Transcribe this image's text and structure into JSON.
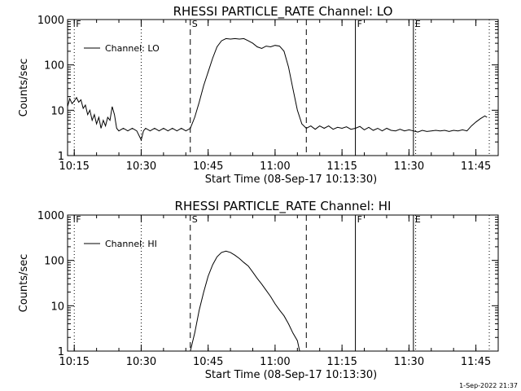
{
  "chart_data": [
    {
      "type": "line",
      "title": "RHESSI PARTICLE_RATE Channel: LO",
      "xlabel": "Start Time (08-Sep-17 10:13:30)",
      "ylabel": "Counts/sec",
      "xlim": [
        "10:13:30",
        "11:50:00"
      ],
      "xticks": [
        "10:15",
        "10:30",
        "10:45",
        "11:00",
        "11:15",
        "11:30",
        "11:45"
      ],
      "ylim": [
        1,
        1000
      ],
      "yscale": "log",
      "yticks": [
        "1",
        "10",
        "100",
        "1000"
      ],
      "legend": "top-left",
      "grid": false,
      "markers": [
        {
          "time": "10:15",
          "label": "F",
          "style": "dotted"
        },
        {
          "time": "10:30",
          "label": "",
          "style": "dotted"
        },
        {
          "time": "10:41",
          "label": "S",
          "style": "dashed"
        },
        {
          "time": "11:07",
          "label": "",
          "style": "dashed"
        },
        {
          "time": "11:18",
          "label": "F",
          "style": "solid"
        },
        {
          "time": "11:31",
          "label": "E",
          "style": "solid"
        },
        {
          "time": "11:31.5",
          "label": "",
          "style": "dotted"
        },
        {
          "time": "11:48",
          "label": "",
          "style": "dotted"
        }
      ],
      "series": [
        {
          "name": "Channel: LO",
          "points": [
            [
              "10:13:30",
              12
            ],
            [
              "10:14:00",
              18
            ],
            [
              "10:14:30",
              14
            ],
            [
              "10:15:00",
              16
            ],
            [
              "10:15:30",
              19
            ],
            [
              "10:16:00",
              15
            ],
            [
              "10:16:30",
              17
            ],
            [
              "10:17:00",
              11
            ],
            [
              "10:17:30",
              13
            ],
            [
              "10:18:00",
              8
            ],
            [
              "10:18:30",
              10
            ],
            [
              "10:19:00",
              6
            ],
            [
              "10:19:30",
              8
            ],
            [
              "10:20:00",
              5
            ],
            [
              "10:20:30",
              7
            ],
            [
              "10:21:00",
              4
            ],
            [
              "10:21:30",
              6
            ],
            [
              "10:22:00",
              4.5
            ],
            [
              "10:22:30",
              7
            ],
            [
              "10:23:00",
              6
            ],
            [
              "10:23:30",
              12
            ],
            [
              "10:24:00",
              8
            ],
            [
              "10:24:30",
              4
            ],
            [
              "10:25:00",
              3.5
            ],
            [
              "10:26:00",
              4
            ],
            [
              "10:27:00",
              3.5
            ],
            [
              "10:28:00",
              4
            ],
            [
              "10:29:00",
              3.5
            ],
            [
              "10:30:00",
              2.2
            ],
            [
              "10:30:30",
              3.5
            ],
            [
              "10:31:00",
              4
            ],
            [
              "10:32:00",
              3.5
            ],
            [
              "10:33:00",
              4
            ],
            [
              "10:34:00",
              3.5
            ],
            [
              "10:35:00",
              4
            ],
            [
              "10:36:00",
              3.5
            ],
            [
              "10:37:00",
              4
            ],
            [
              "10:38:00",
              3.5
            ],
            [
              "10:39:00",
              4
            ],
            [
              "10:40:00",
              3.5
            ],
            [
              "10:41:00",
              4
            ],
            [
              "10:42:00",
              7
            ],
            [
              "10:43:00",
              15
            ],
            [
              "10:44:00",
              35
            ],
            [
              "10:45:00",
              70
            ],
            [
              "10:46:00",
              140
            ],
            [
              "10:47:00",
              250
            ],
            [
              "10:48:00",
              340
            ],
            [
              "10:49:00",
              380
            ],
            [
              "10:50:00",
              370
            ],
            [
              "10:51:00",
              380
            ],
            [
              "10:52:00",
              370
            ],
            [
              "10:53:00",
              380
            ],
            [
              "10:54:00",
              340
            ],
            [
              "10:55:00",
              300
            ],
            [
              "10:56:00",
              250
            ],
            [
              "10:57:00",
              230
            ],
            [
              "10:58:00",
              260
            ],
            [
              "10:59:00",
              250
            ],
            [
              "11:00:00",
              270
            ],
            [
              "11:01:00",
              260
            ],
            [
              "11:02:00",
              200
            ],
            [
              "11:03:00",
              90
            ],
            [
              "11:04:00",
              30
            ],
            [
              "11:05:00",
              10
            ],
            [
              "11:06:00",
              5
            ],
            [
              "11:07:00",
              4
            ],
            [
              "11:08:00",
              4.5
            ],
            [
              "11:09:00",
              3.8
            ],
            [
              "11:10:00",
              4.5
            ],
            [
              "11:11:00",
              4
            ],
            [
              "11:12:00",
              4.5
            ],
            [
              "11:13:00",
              3.8
            ],
            [
              "11:14:00",
              4.2
            ],
            [
              "11:15:00",
              4
            ],
            [
              "11:16:00",
              4.3
            ],
            [
              "11:17:00",
              3.8
            ],
            [
              "11:18:00",
              4
            ],
            [
              "11:19:00",
              4.4
            ],
            [
              "11:20:00",
              3.7
            ],
            [
              "11:21:00",
              4.2
            ],
            [
              "11:22:00",
              3.6
            ],
            [
              "11:23:00",
              4
            ],
            [
              "11:24:00",
              3.5
            ],
            [
              "11:25:00",
              4
            ],
            [
              "11:26:00",
              3.6
            ],
            [
              "11:27:00",
              3.5
            ],
            [
              "11:28:00",
              3.8
            ],
            [
              "11:29:00",
              3.5
            ],
            [
              "11:30:00",
              3.7
            ],
            [
              "11:31:00",
              3.5
            ],
            [
              "11:32:00",
              3.3
            ],
            [
              "11:33:00",
              3.6
            ],
            [
              "11:34:00",
              3.4
            ],
            [
              "11:35:00",
              3.5
            ],
            [
              "11:36:00",
              3.6
            ],
            [
              "11:37:00",
              3.5
            ],
            [
              "11:38:00",
              3.6
            ],
            [
              "11:39:00",
              3.4
            ],
            [
              "11:40:00",
              3.6
            ],
            [
              "11:41:00",
              3.5
            ],
            [
              "11:42:00",
              3.7
            ],
            [
              "11:43:00",
              3.5
            ],
            [
              "11:44:00",
              4.5
            ],
            [
              "11:45:00",
              5.5
            ],
            [
              "11:46:00",
              6.5
            ],
            [
              "11:47:00",
              7.5
            ],
            [
              "11:47:30",
              7
            ]
          ]
        }
      ]
    },
    {
      "type": "line",
      "title": "RHESSI PARTICLE_RATE Channel: HI",
      "xlabel": "Start Time (08-Sep-17 10:13:30)",
      "ylabel": "Counts/sec",
      "xlim": [
        "10:13:30",
        "11:50:00"
      ],
      "xticks": [
        "10:15",
        "10:30",
        "10:45",
        "11:00",
        "11:15",
        "11:30",
        "11:45"
      ],
      "ylim": [
        1,
        1000
      ],
      "yscale": "log",
      "yticks": [
        "1",
        "10",
        "100",
        "1000"
      ],
      "legend": "top-left",
      "grid": false,
      "markers": [
        {
          "time": "10:15",
          "label": "F",
          "style": "dotted"
        },
        {
          "time": "10:30",
          "label": "",
          "style": "dotted"
        },
        {
          "time": "10:41",
          "label": "S",
          "style": "dashed"
        },
        {
          "time": "11:07",
          "label": "",
          "style": "dashed"
        },
        {
          "time": "11:18",
          "label": "F",
          "style": "solid"
        },
        {
          "time": "11:31",
          "label": "E",
          "style": "solid"
        },
        {
          "time": "11:31.5",
          "label": "",
          "style": "dotted"
        },
        {
          "time": "11:48",
          "label": "",
          "style": "dotted"
        }
      ],
      "series": [
        {
          "name": "Channel: HI",
          "points": [
            [
              "10:41:00",
              1
            ],
            [
              "10:42:00",
              2.5
            ],
            [
              "10:43:00",
              8
            ],
            [
              "10:44:00",
              20
            ],
            [
              "10:45:00",
              45
            ],
            [
              "10:46:00",
              80
            ],
            [
              "10:47:00",
              120
            ],
            [
              "10:48:00",
              150
            ],
            [
              "10:49:00",
              160
            ],
            [
              "10:50:00",
              150
            ],
            [
              "10:51:00",
              130
            ],
            [
              "10:52:00",
              110
            ],
            [
              "10:53:00",
              90
            ],
            [
              "10:54:00",
              75
            ],
            [
              "10:55:00",
              55
            ],
            [
              "10:56:00",
              40
            ],
            [
              "10:57:00",
              30
            ],
            [
              "10:58:00",
              22
            ],
            [
              "10:59:00",
              16
            ],
            [
              "11:00:00",
              11
            ],
            [
              "11:01:00",
              8
            ],
            [
              "11:02:00",
              6
            ],
            [
              "11:03:00",
              4
            ],
            [
              "11:04:00",
              2.5
            ],
            [
              "11:05:00",
              1.7
            ],
            [
              "11:05:30",
              1
            ]
          ]
        }
      ]
    }
  ],
  "timestamp": "1-Sep-2022 21:37"
}
